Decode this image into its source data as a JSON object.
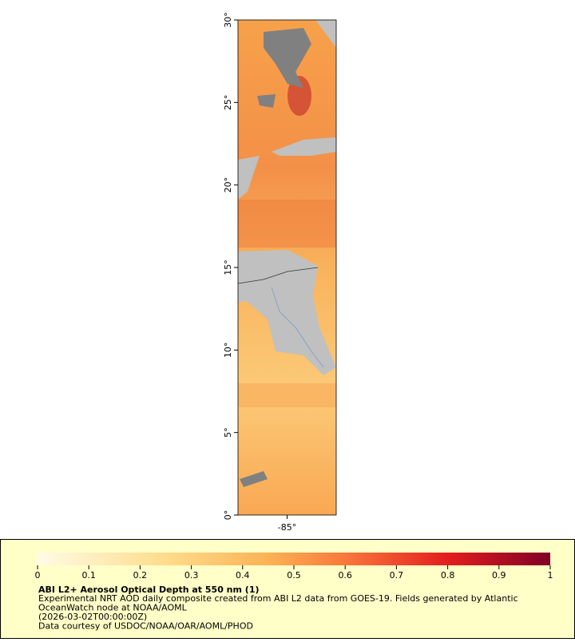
{
  "chart_data": {
    "type": "map",
    "title": "ABI L2+ Aerosol Optical Depth at 550 nm (1)",
    "notes": [
      "Experimental NRT AOD daily composite created from ABI L2 data from GOES-19. Fields generated by Atlantic",
      "OceanWatch node at NOAA/AOML",
      "(2026-03-02T00:00:00Z)",
      "Data courtesy of USDOC/NOAA/OAR/AOML/PHOD"
    ],
    "xlim": [
      -88,
      -82
    ],
    "ylim": [
      0,
      30
    ],
    "xticks": [
      {
        "value": -85,
        "label": "-85°"
      }
    ],
    "yticks": [
      {
        "value": 0,
        "label": "0°"
      },
      {
        "value": 5,
        "label": "5°"
      },
      {
        "value": 10,
        "label": "10°"
      },
      {
        "value": 15,
        "label": "15°"
      },
      {
        "value": 20,
        "label": "20°"
      },
      {
        "value": 25,
        "label": "25°"
      },
      {
        "value": 30,
        "label": "30°"
      }
    ],
    "colorbar": {
      "lim": [
        0,
        1
      ],
      "ticks": [
        0,
        0.1,
        0.2,
        0.3,
        0.4,
        0.5,
        0.6,
        0.7,
        0.8,
        0.9,
        1
      ]
    }
  }
}
